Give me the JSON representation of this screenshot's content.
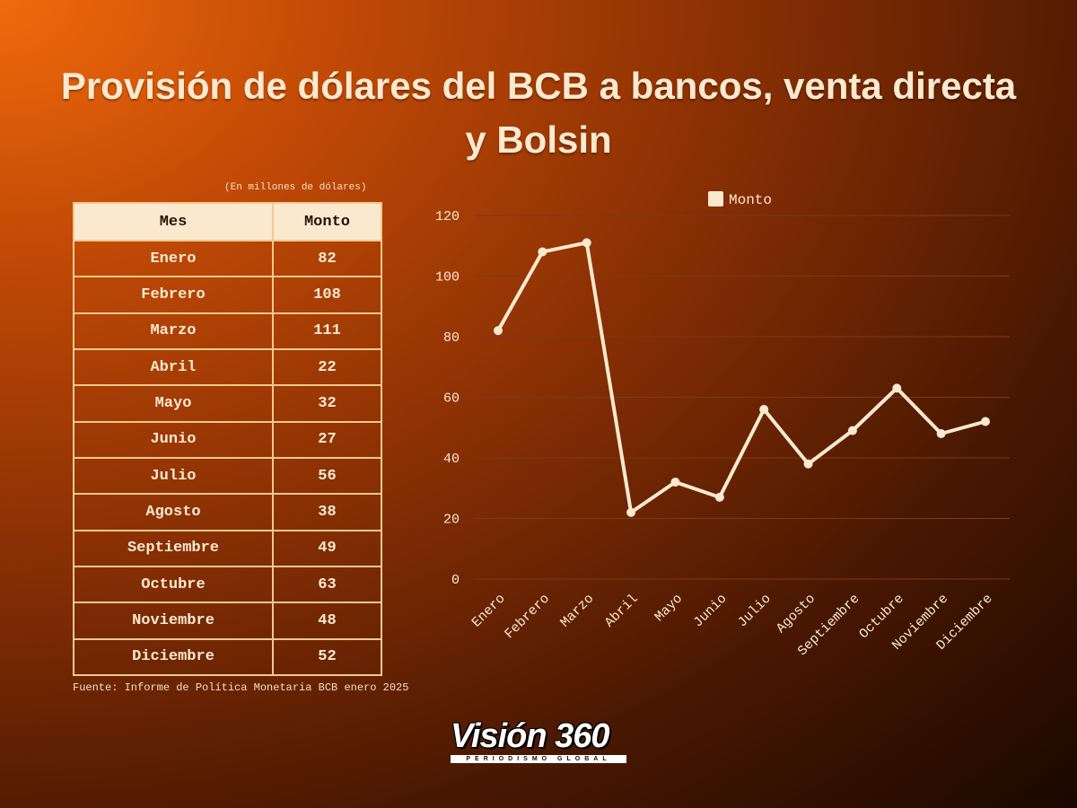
{
  "title_line1": "Provisión de dólares del BCB a bancos, venta directa",
  "title_line2": "y Bolsin",
  "unit_note": "(En millones de dólares)",
  "table": {
    "headers": [
      "Mes",
      "Monto"
    ],
    "rows": [
      [
        "Enero",
        "82"
      ],
      [
        "Febrero",
        "108"
      ],
      [
        "Marzo",
        "111"
      ],
      [
        "Abril",
        "22"
      ],
      [
        "Mayo",
        "32"
      ],
      [
        "Junio",
        "27"
      ],
      [
        "Julio",
        "56"
      ],
      [
        "Agosto",
        "38"
      ],
      [
        "Septiembre",
        "49"
      ],
      [
        "Octubre",
        "63"
      ],
      [
        "Noviembre",
        "48"
      ],
      [
        "Diciembre",
        "52"
      ]
    ]
  },
  "source": "Fuente: Informe de Política Monetaria BCB enero 2025",
  "logo": {
    "name": "Visión 360",
    "tagline": "PERIODISMO GLOBAL"
  },
  "colors": {
    "line": "#fbe9cf",
    "grid": "#7a3a18",
    "text": "#fbe9cf"
  },
  "chart_data": {
    "type": "line",
    "categories": [
      "Enero",
      "Febrero",
      "Marzo",
      "Abril",
      "Mayo",
      "Junio",
      "Julio",
      "Agosto",
      "Septiembre",
      "Octubre",
      "Noviembre",
      "Diciembre"
    ],
    "series": [
      {
        "name": "Monto",
        "values": [
          82,
          108,
          111,
          22,
          32,
          27,
          56,
          38,
          49,
          63,
          48,
          52
        ]
      }
    ],
    "yticks": [
      0,
      20,
      40,
      60,
      80,
      100,
      120
    ],
    "ylim": [
      0,
      120
    ],
    "grid": true,
    "legend": "top-center"
  }
}
